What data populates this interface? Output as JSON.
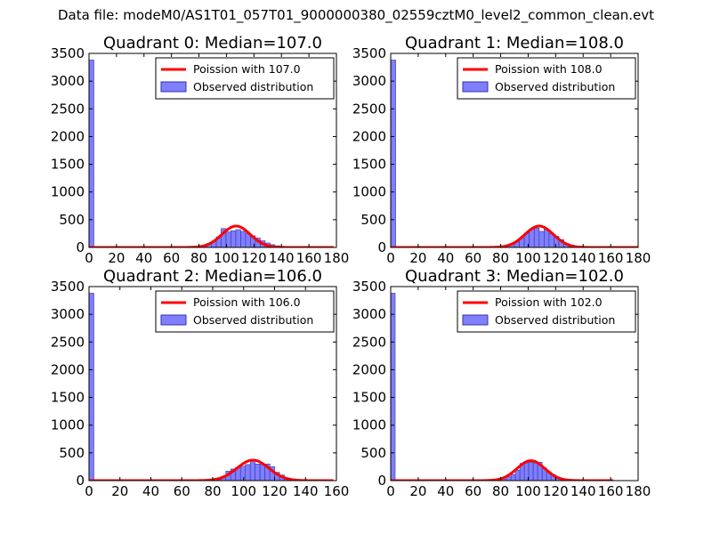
{
  "figure": {
    "suptitle": "Data file: modeM0/AS1T01_057T01_9000000380_02559cztM0_level2_common_clean.evt"
  },
  "colors": {
    "bar_fill": "#7f7fff",
    "bar_edge": "#3333aa",
    "poisson_line": "#ff0000",
    "axes": "#000000"
  },
  "chart_data": [
    {
      "type": "bar",
      "title": "Quadrant 0: Median=107.0",
      "xlim": [
        0,
        180
      ],
      "ylim": [
        0,
        3500
      ],
      "xticks": [
        0,
        20,
        40,
        60,
        80,
        100,
        120,
        140,
        160,
        180
      ],
      "yticks": [
        0,
        500,
        1000,
        1500,
        2000,
        2500,
        3000,
        3500
      ],
      "legend_position": "top-right",
      "median": 107.0,
      "series": [
        {
          "name": "Poission with 107.0",
          "kind": "line",
          "curve": "poisson",
          "mu": 107.0,
          "peak": 385,
          "x_range": [
            0,
            178
          ]
        },
        {
          "name": "Observed distribution",
          "kind": "bar",
          "bin_width": 3.56,
          "bins": [
            {
              "x": 0,
              "y": 3380
            },
            {
              "x": 81.9,
              "y": 40
            },
            {
              "x": 85.5,
              "y": 70
            },
            {
              "x": 89.0,
              "y": 110
            },
            {
              "x": 92.6,
              "y": 190
            },
            {
              "x": 96.1,
              "y": 340
            },
            {
              "x": 99.7,
              "y": 280
            },
            {
              "x": 103.2,
              "y": 300
            },
            {
              "x": 106.8,
              "y": 320
            },
            {
              "x": 110.4,
              "y": 290
            },
            {
              "x": 113.9,
              "y": 250
            },
            {
              "x": 117.5,
              "y": 210
            },
            {
              "x": 121.0,
              "y": 170
            },
            {
              "x": 124.6,
              "y": 120
            },
            {
              "x": 128.2,
              "y": 80
            },
            {
              "x": 131.7,
              "y": 50
            },
            {
              "x": 135.3,
              "y": 30
            },
            {
              "x": 138.8,
              "y": 15
            }
          ]
        }
      ]
    },
    {
      "type": "bar",
      "title": "Quadrant 1: Median=108.0",
      "xlim": [
        0,
        180
      ],
      "ylim": [
        0,
        3500
      ],
      "xticks": [
        0,
        20,
        40,
        60,
        80,
        100,
        120,
        140,
        160,
        180
      ],
      "yticks": [
        0,
        500,
        1000,
        1500,
        2000,
        2500,
        3000,
        3500
      ],
      "legend_position": "top-right",
      "median": 108.0,
      "series": [
        {
          "name": "Poission with 108.0",
          "kind": "line",
          "curve": "poisson",
          "mu": 108.0,
          "peak": 385,
          "x_range": [
            0,
            180
          ]
        },
        {
          "name": "Observed distribution",
          "kind": "bar",
          "bin_width": 3.6,
          "bins": [
            {
              "x": 0,
              "y": 3380
            },
            {
              "x": 86.4,
              "y": 60
            },
            {
              "x": 90.0,
              "y": 100
            },
            {
              "x": 93.6,
              "y": 170
            },
            {
              "x": 97.2,
              "y": 260
            },
            {
              "x": 100.8,
              "y": 330
            },
            {
              "x": 104.4,
              "y": 350
            },
            {
              "x": 108.0,
              "y": 290
            },
            {
              "x": 111.6,
              "y": 330
            },
            {
              "x": 115.2,
              "y": 250
            },
            {
              "x": 118.8,
              "y": 200
            },
            {
              "x": 122.4,
              "y": 140
            },
            {
              "x": 126.0,
              "y": 70
            },
            {
              "x": 129.6,
              "y": 45
            },
            {
              "x": 133.2,
              "y": 25
            }
          ]
        }
      ]
    },
    {
      "type": "bar",
      "title": "Quadrant 2: Median=106.0",
      "xlim": [
        0,
        160
      ],
      "ylim": [
        0,
        3500
      ],
      "xticks": [
        0,
        20,
        40,
        60,
        80,
        100,
        120,
        140,
        160
      ],
      "yticks": [
        0,
        500,
        1000,
        1500,
        2000,
        2500,
        3000,
        3500
      ],
      "legend_position": "top-right",
      "median": 106.0,
      "series": [
        {
          "name": "Poission with 106.0",
          "kind": "line",
          "curve": "poisson",
          "mu": 106.0,
          "peak": 370,
          "x_range": [
            0,
            158
          ]
        },
        {
          "name": "Observed distribution",
          "kind": "bar",
          "bin_width": 3.16,
          "bins": [
            {
              "x": 0,
              "y": 3380
            },
            {
              "x": 82.2,
              "y": 25
            },
            {
              "x": 85.3,
              "y": 60
            },
            {
              "x": 88.5,
              "y": 170
            },
            {
              "x": 91.6,
              "y": 210
            },
            {
              "x": 94.8,
              "y": 240
            },
            {
              "x": 98.0,
              "y": 260
            },
            {
              "x": 101.1,
              "y": 290
            },
            {
              "x": 104.3,
              "y": 350
            },
            {
              "x": 107.4,
              "y": 300
            },
            {
              "x": 110.6,
              "y": 290
            },
            {
              "x": 113.8,
              "y": 300
            },
            {
              "x": 116.9,
              "y": 250
            },
            {
              "x": 120.1,
              "y": 150
            },
            {
              "x": 123.2,
              "y": 100
            },
            {
              "x": 126.4,
              "y": 40
            },
            {
              "x": 129.6,
              "y": 20
            }
          ]
        }
      ]
    },
    {
      "type": "bar",
      "title": "Quadrant 3: Median=102.0",
      "xlim": [
        0,
        180
      ],
      "ylim": [
        0,
        3500
      ],
      "xticks": [
        0,
        20,
        40,
        60,
        80,
        100,
        120,
        140,
        160,
        180
      ],
      "yticks": [
        0,
        500,
        1000,
        1500,
        2000,
        2500,
        3000,
        3500
      ],
      "legend_position": "top-right",
      "median": 102.0,
      "series": [
        {
          "name": "Poission with 102.0",
          "kind": "line",
          "curve": "poisson",
          "mu": 102.0,
          "peak": 360,
          "x_range": [
            0,
            162
          ]
        },
        {
          "name": "Observed distribution",
          "kind": "bar",
          "bin_width": 3.24,
          "bins": [
            {
              "x": 0,
              "y": 3380
            },
            {
              "x": 81.0,
              "y": 30
            },
            {
              "x": 84.2,
              "y": 70
            },
            {
              "x": 87.5,
              "y": 110
            },
            {
              "x": 90.7,
              "y": 190
            },
            {
              "x": 94.0,
              "y": 310
            },
            {
              "x": 97.2,
              "y": 320
            },
            {
              "x": 100.4,
              "y": 330
            },
            {
              "x": 103.7,
              "y": 320
            },
            {
              "x": 106.9,
              "y": 330
            },
            {
              "x": 110.2,
              "y": 230
            },
            {
              "x": 113.4,
              "y": 160
            },
            {
              "x": 116.6,
              "y": 110
            },
            {
              "x": 119.9,
              "y": 60
            },
            {
              "x": 123.1,
              "y": 30
            }
          ]
        }
      ]
    }
  ]
}
